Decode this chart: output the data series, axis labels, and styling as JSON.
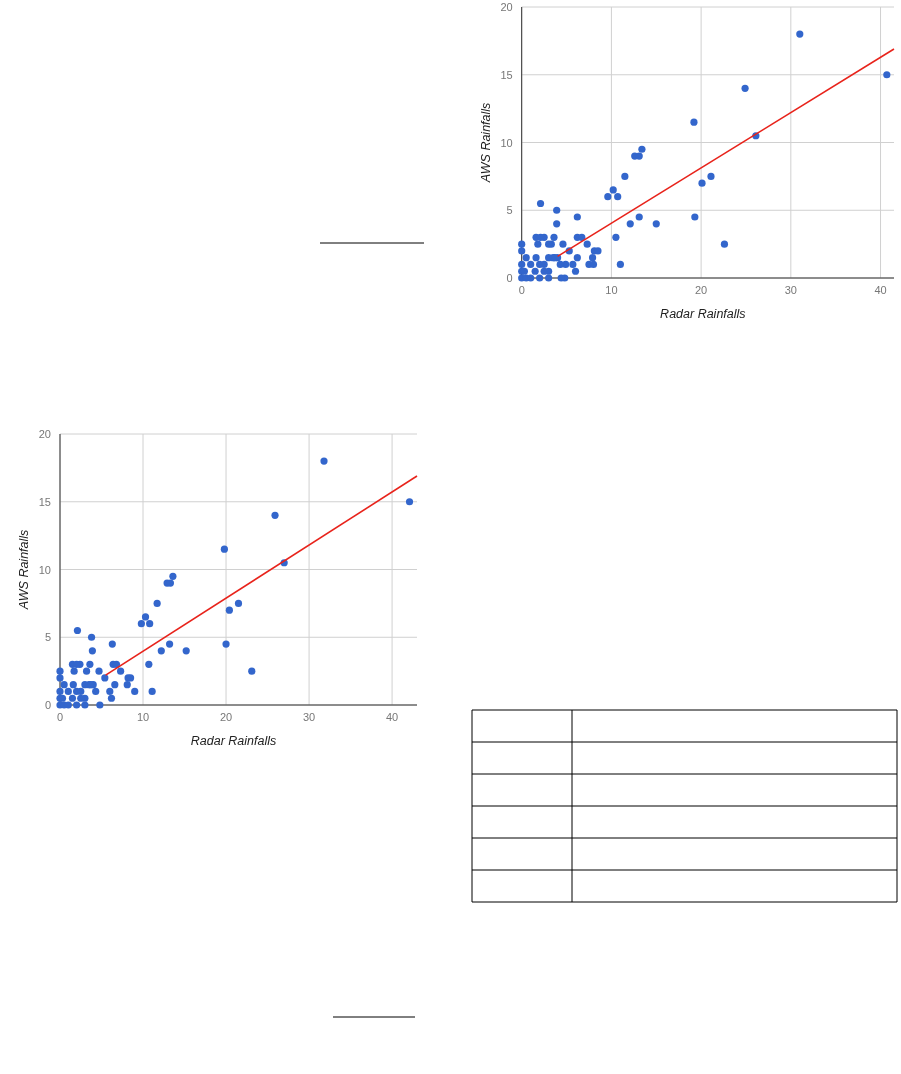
{
  "chart_data": [
    {
      "type": "scatter",
      "xlabel": "Radar Rainfalls",
      "ylabel": "AWS Rainfalls",
      "xlim": [
        0,
        41.5
      ],
      "ylim": [
        0,
        20
      ],
      "xticks": [
        0,
        10,
        20,
        30,
        40
      ],
      "yticks": [
        0,
        5,
        10,
        15,
        20
      ],
      "grid": true,
      "series": [
        {
          "marker": "circle",
          "color": "#3366cc",
          "x": [
            31,
            40.7,
            24.9,
            19.2,
            26.1,
            13.4,
            12.6,
            13.1,
            11.5,
            20.1,
            21.1,
            10.2,
            9.6,
            10.7,
            2.1,
            3.9,
            6.2,
            3.9,
            12.1,
            13.1,
            15,
            19.3,
            22.6,
            10.5,
            11,
            6.2,
            6.7,
            7.3,
            8.1,
            8.5,
            7.9,
            7.5,
            8,
            6.2,
            6,
            5.7,
            5.3,
            4.6,
            4.9,
            4.8,
            4.4,
            3.6,
            3.3,
            3,
            2.5,
            1.6,
            2.1,
            1.8,
            0,
            0,
            0,
            0,
            0,
            0.5,
            1.6,
            1,
            2,
            3,
            3.5,
            4,
            4.3,
            3,
            2.5,
            1.5,
            0.5,
            1,
            2,
            3,
            0.3,
            2.5,
            3.7
          ],
          "values": [
            18,
            15,
            14,
            11.5,
            10.5,
            9.5,
            9,
            9,
            7.5,
            7,
            7.5,
            6.5,
            6,
            6,
            5.5,
            5,
            4.5,
            4,
            4,
            4.5,
            4,
            4.5,
            2.5,
            3,
            1,
            3,
            3,
            2.5,
            2,
            2,
            1.5,
            1,
            1,
            1.5,
            0.5,
            1,
            2,
            2.5,
            1,
            0,
            0,
            3,
            2.5,
            2.5,
            3,
            3,
            3,
            2.5,
            2.5,
            2,
            1,
            0.5,
            0,
            1.5,
            1.5,
            1,
            1,
            1.5,
            1.5,
            1.5,
            1,
            0.5,
            0.5,
            0.5,
            0,
            0,
            0,
            0,
            0.5,
            1,
            1.5
          ]
        },
        {
          "type": "line",
          "marker": "none",
          "color": "#e8231b",
          "x": [
            4,
            41.5
          ],
          "values": [
            1.6,
            16.9
          ]
        }
      ]
    },
    {
      "type": "scatter",
      "xlabel": "Radar Rainfalls",
      "ylabel": "AWS Rainfalls",
      "xlim": [
        0,
        43
      ],
      "ylim": [
        0,
        20
      ],
      "xticks": [
        0,
        10,
        20,
        30,
        40
      ],
      "yticks": [
        0,
        5,
        10,
        15,
        20
      ],
      "grid": true,
      "series": [
        {
          "marker": "circle",
          "color": "#3366cc",
          "x": [
            31.8,
            42.1,
            25.9,
            19.8,
            27,
            13.6,
            12.9,
            13.3,
            11.7,
            20.4,
            21.5,
            10.3,
            9.8,
            10.8,
            2.1,
            3.8,
            6.3,
            3.9,
            12.2,
            13.2,
            15.2,
            20,
            23.1,
            10.7,
            11.1,
            9,
            6.4,
            6.8,
            7.3,
            8.2,
            8.5,
            8.1,
            6.6,
            6.2,
            6,
            5.4,
            4.7,
            4.8,
            3.6,
            3.2,
            2.4,
            1.5,
            2,
            1.7,
            0,
            0,
            0,
            0,
            0,
            0.5,
            1.6,
            1,
            2,
            3,
            3.5,
            4,
            4.3,
            3,
            2.5,
            1.5,
            0.5,
            1,
            2,
            3,
            0.3,
            2.5,
            3.7
          ],
          "values": [
            18,
            15,
            14,
            11.5,
            10.5,
            9.5,
            9,
            9,
            7.5,
            7,
            7.5,
            6.5,
            6,
            6,
            5.5,
            5,
            4.5,
            4,
            4,
            4.5,
            4,
            4.5,
            2.5,
            3,
            1,
            1,
            3,
            3,
            2.5,
            2,
            2,
            1.5,
            1.5,
            0.5,
            1,
            2,
            2.5,
            0,
            3,
            2.5,
            3,
            3,
            3,
            2.5,
            2.5,
            2,
            1,
            0.5,
            0,
            1.5,
            1.5,
            1,
            1,
            1.5,
            1.5,
            1.5,
            1,
            0.5,
            0.5,
            0.5,
            0,
            0,
            0,
            0,
            0.5,
            1,
            1.5
          ]
        },
        {
          "type": "line",
          "marker": "none",
          "color": "#e8231b",
          "x": [
            5.5,
            43
          ],
          "values": [
            2.2,
            16.9
          ]
        }
      ]
    }
  ]
}
